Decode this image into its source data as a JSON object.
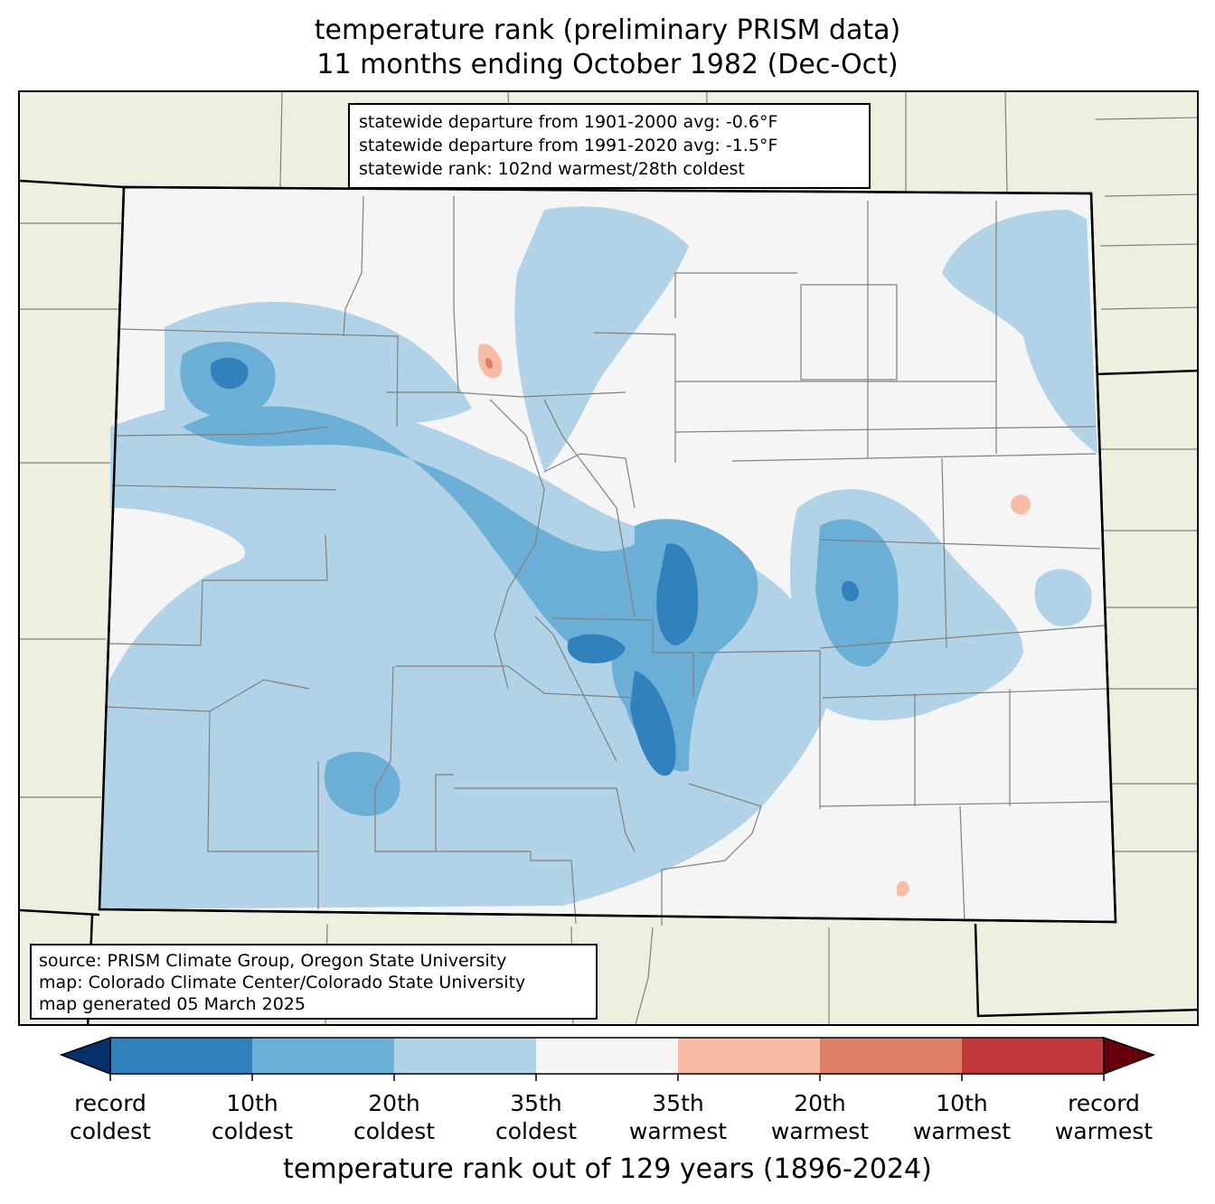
{
  "title": {
    "line1": "temperature rank (preliminary PRISM data)",
    "line2": "11 months ending October 1982 (Dec-Oct)"
  },
  "stats": {
    "line1": "statewide departure from 1901-2000 avg: -0.6°F",
    "line2": "statewide departure from 1991-2020 avg: -1.5°F",
    "line3": "statewide rank: 102nd warmest/28th coldest"
  },
  "source": {
    "line1": "source: PRISM Climate Group, Oregon State University",
    "line2": "map: Colorado Climate Center/Colorado State University",
    "line3": "map generated 05 March 2025"
  },
  "colorbar": {
    "title": "temperature rank out of 129 years (1896-2024)",
    "ticks": [
      {
        "top": "record",
        "bottom": "coldest"
      },
      {
        "top": "10th",
        "bottom": "coldest"
      },
      {
        "top": "20th",
        "bottom": "coldest"
      },
      {
        "top": "35th",
        "bottom": "coldest"
      },
      {
        "top": "35th",
        "bottom": "warmest"
      },
      {
        "top": "20th",
        "bottom": "warmest"
      },
      {
        "top": "10th",
        "bottom": "warmest"
      },
      {
        "top": "record",
        "bottom": "warmest"
      }
    ],
    "colors": {
      "extend_cold": "#08306b",
      "bins": [
        "#3181bd",
        "#6baed6",
        "#b2d3e7",
        "#f5f5f5",
        "#f8bba5",
        "#e07f68",
        "#c13639"
      ],
      "extend_warm": "#67000d"
    }
  },
  "map_colors": {
    "background_land": "#efefdf",
    "state_fill": "#f5f5f5",
    "county_lines": "#808080",
    "state_border": "#000000"
  }
}
